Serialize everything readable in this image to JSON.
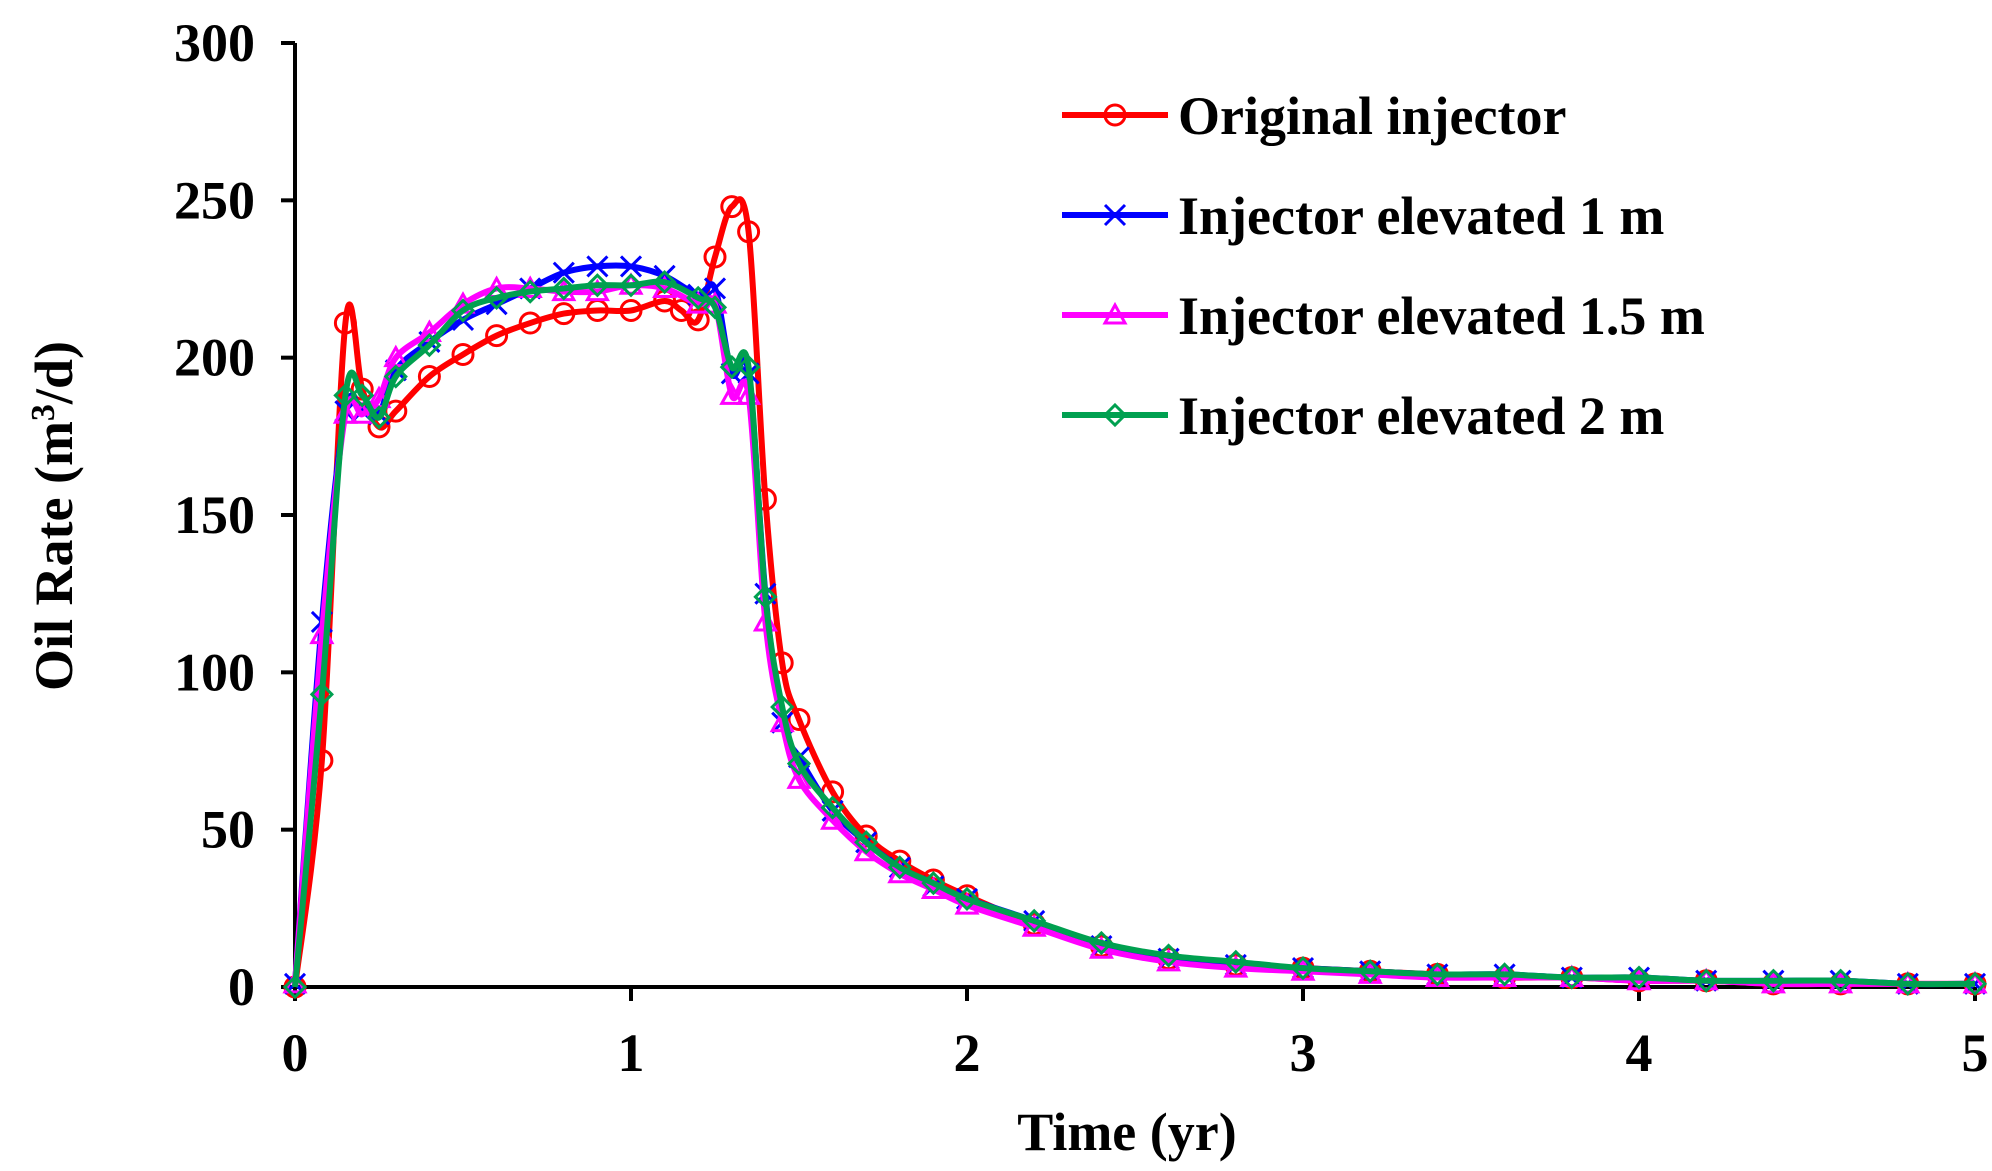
{
  "chart_data": {
    "type": "line",
    "title": "",
    "xlabel": "Time (yr)",
    "ylabel_main": "Oil Rate (m",
    "ylabel_sup": "3",
    "ylabel_tail": "/d)",
    "xlim": [
      0,
      5
    ],
    "ylim": [
      0,
      300
    ],
    "xticks": [
      0,
      1,
      2,
      3,
      4,
      5
    ],
    "yticks": [
      0,
      50,
      100,
      150,
      200,
      250,
      300
    ],
    "grid": false,
    "legend_position": "top-right",
    "series": [
      {
        "name": "Original injector",
        "color": "#ff0000",
        "marker": "circle",
        "x": [
          0,
          0.08,
          0.15,
          0.2,
          0.25,
          0.3,
          0.4,
          0.5,
          0.6,
          0.7,
          0.8,
          0.9,
          1.0,
          1.1,
          1.15,
          1.2,
          1.25,
          1.3,
          1.35,
          1.4,
          1.45,
          1.5,
          1.6,
          1.7,
          1.8,
          1.9,
          2.0,
          2.2,
          2.4,
          2.6,
          2.8,
          3.0,
          3.2,
          3.4,
          3.6,
          3.8,
          4.0,
          4.2,
          4.4,
          4.6,
          4.8,
          5.0
        ],
        "y": [
          0,
          72,
          211,
          190,
          178,
          183,
          194,
          201,
          207,
          211,
          214,
          215,
          215,
          218,
          215,
          212,
          232,
          248,
          240,
          155,
          103,
          85,
          62,
          48,
          40,
          34,
          29,
          20,
          13,
          9,
          7,
          6,
          5,
          4,
          3,
          3,
          2,
          2,
          1,
          1,
          1,
          1
        ]
      },
      {
        "name": "Injector elevated 1 m",
        "color": "#0000ff",
        "marker": "x",
        "x": [
          0,
          0.08,
          0.15,
          0.2,
          0.25,
          0.3,
          0.4,
          0.5,
          0.6,
          0.7,
          0.8,
          0.9,
          1.0,
          1.1,
          1.2,
          1.25,
          1.3,
          1.35,
          1.4,
          1.45,
          1.5,
          1.6,
          1.7,
          1.8,
          1.9,
          2.0,
          2.2,
          2.4,
          2.6,
          2.8,
          3.0,
          3.2,
          3.4,
          3.6,
          3.8,
          4.0,
          4.2,
          4.4,
          4.6,
          4.8,
          5.0
        ],
        "y": [
          1,
          116,
          183,
          183,
          182,
          196,
          205,
          212,
          217,
          222,
          227,
          229,
          229,
          226,
          220,
          222,
          195,
          195,
          125,
          84,
          73,
          56,
          46,
          38,
          32,
          28,
          21,
          13,
          9,
          7,
          6,
          5,
          4,
          4,
          3,
          3,
          2,
          2,
          2,
          1,
          1
        ]
      },
      {
        "name": "Injector elevated 1.5 m",
        "color": "#ff00ff",
        "marker": "triangle",
        "x": [
          0,
          0.08,
          0.15,
          0.2,
          0.25,
          0.3,
          0.4,
          0.5,
          0.6,
          0.7,
          0.8,
          0.9,
          1.0,
          1.1,
          1.2,
          1.25,
          1.3,
          1.35,
          1.4,
          1.45,
          1.5,
          1.6,
          1.7,
          1.8,
          1.9,
          2.0,
          2.2,
          2.4,
          2.6,
          2.8,
          3.0,
          3.2,
          3.4,
          3.6,
          3.8,
          4.0,
          4.2,
          4.4,
          4.6,
          4.8,
          5.0
        ],
        "y": [
          1,
          112,
          182,
          182,
          187,
          200,
          208,
          217,
          222,
          222,
          221,
          221,
          223,
          222,
          217,
          217,
          188,
          188,
          116,
          84,
          66,
          53,
          43,
          36,
          31,
          26,
          19,
          12,
          8,
          6,
          5,
          4,
          3,
          3,
          3,
          2,
          2,
          1,
          1,
          1,
          1
        ]
      },
      {
        "name": "Injector elevated 2 m",
        "color": "#00a050",
        "marker": "diamond",
        "x": [
          0,
          0.08,
          0.15,
          0.2,
          0.25,
          0.3,
          0.4,
          0.5,
          0.6,
          0.7,
          0.8,
          0.9,
          1.0,
          1.1,
          1.2,
          1.25,
          1.3,
          1.35,
          1.4,
          1.45,
          1.5,
          1.6,
          1.7,
          1.8,
          1.9,
          2.0,
          2.2,
          2.4,
          2.6,
          2.8,
          3.0,
          3.2,
          3.4,
          3.6,
          3.8,
          4.0,
          4.2,
          4.4,
          4.6,
          4.8,
          5.0
        ],
        "y": [
          0,
          93,
          188,
          188,
          181,
          194,
          204,
          215,
          219,
          221,
          222,
          223,
          223,
          224,
          219,
          216,
          197,
          197,
          124,
          89,
          71,
          57,
          46,
          38,
          33,
          28,
          21,
          14,
          10,
          8,
          6,
          5,
          4,
          4,
          3,
          3,
          2,
          2,
          2,
          1,
          1
        ]
      }
    ]
  }
}
